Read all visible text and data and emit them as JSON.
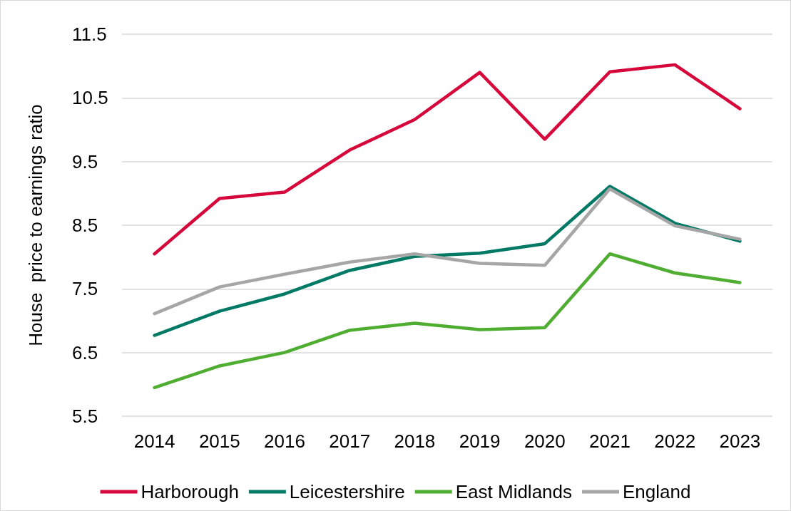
{
  "chart_data": {
    "type": "line",
    "ylabel": "House  price to earnings ratio",
    "categories": [
      "2014",
      "2015",
      "2016",
      "2017",
      "2018",
      "2019",
      "2020",
      "2021",
      "2022",
      "2023"
    ],
    "series": [
      {
        "name": "Harborough",
        "color": "#d6083b",
        "values": [
          8.05,
          8.92,
          9.02,
          9.68,
          10.16,
          10.9,
          9.85,
          10.91,
          11.02,
          10.33
        ]
      },
      {
        "name": "Leicestershire",
        "color": "#007a64",
        "values": [
          6.77,
          7.15,
          7.42,
          7.79,
          8.01,
          8.06,
          8.21,
          9.11,
          8.53,
          8.25
        ]
      },
      {
        "name": "East Midlands",
        "color": "#4fad32",
        "values": [
          5.95,
          6.29,
          6.5,
          6.85,
          6.96,
          6.86,
          6.89,
          8.05,
          7.75,
          7.6
        ]
      },
      {
        "name": "England",
        "color": "#a6a6a6",
        "values": [
          7.11,
          7.53,
          7.73,
          7.92,
          8.05,
          7.9,
          7.87,
          9.07,
          8.49,
          8.28
        ]
      }
    ],
    "ylim": [
      5.5,
      11.5
    ],
    "yticks": [
      5.5,
      6.5,
      7.5,
      8.5,
      9.5,
      10.5,
      11.5
    ],
    "grid": "y",
    "legend": "bottom",
    "marker": "none",
    "line_style": "solid"
  }
}
